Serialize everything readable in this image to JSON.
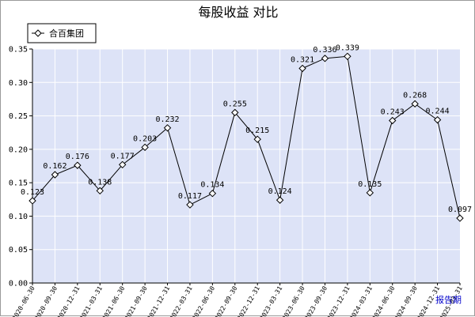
{
  "chart_data": {
    "type": "line",
    "title": "每股收益  对比",
    "xlabel": "报告期",
    "ylabel": "",
    "ylim": [
      0,
      0.35
    ],
    "yticks": [
      "0.00",
      "0.05",
      "0.10",
      "0.15",
      "0.20",
      "0.25",
      "0.30",
      "0.35"
    ],
    "grid": true,
    "legend_position": "top-left",
    "colors": {
      "plot_bg": "#dde3f7",
      "grid": "#ffffff",
      "line": "#000000",
      "marker_fill": "#ffffff"
    },
    "categories": [
      "2020-06-30",
      "2020-09-30",
      "2020-12-31",
      "2021-03-31",
      "2021-06-30",
      "2021-09-30",
      "2021-12-31",
      "2022-03-31",
      "2022-06-30",
      "2022-09-30",
      "2022-12-31",
      "2023-03-31",
      "2023-06-30",
      "2023-09-30",
      "2023-12-31",
      "2024-03-31",
      "2024-06-30",
      "2024-09-30",
      "2024-12-31",
      "2025-03-31"
    ],
    "series": [
      {
        "name": "合百集团",
        "values": [
          0.123,
          0.162,
          0.176,
          0.138,
          0.177,
          0.203,
          0.232,
          0.117,
          0.134,
          0.255,
          0.215,
          0.124,
          0.321,
          0.336,
          0.339,
          0.135,
          0.243,
          0.268,
          0.244,
          0.097
        ],
        "labels": [
          "0.123",
          "0.162",
          "0.176",
          "0.138",
          "0.177",
          "0.203",
          "0.232",
          "0.117",
          "0.134",
          "0.255",
          "0.215",
          "0.124",
          "0.321",
          "0.336",
          "0.339",
          "0.135",
          "0.243",
          "0.268",
          "0.244",
          "0.097"
        ]
      }
    ]
  }
}
